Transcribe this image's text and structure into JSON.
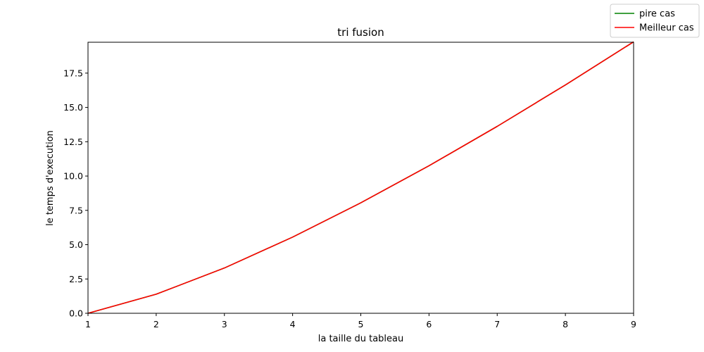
{
  "chart_data": {
    "type": "line",
    "title": "tri fusion",
    "xlabel": "la taille du tableau",
    "ylabel": "le temps d'execution",
    "x": [
      1,
      2,
      3,
      4,
      5,
      6,
      7,
      8,
      9
    ],
    "xlim": [
      1,
      9
    ],
    "ylim": [
      0,
      19.75
    ],
    "xticks": [
      1,
      2,
      3,
      4,
      5,
      6,
      7,
      8,
      9
    ],
    "yticks": [
      0.0,
      2.5,
      5.0,
      7.5,
      10.0,
      12.5,
      15.0,
      17.5
    ],
    "ytick_labels": [
      "0.0",
      "2.5",
      "5.0",
      "7.5",
      "10.0",
      "12.5",
      "15.0",
      "17.5"
    ],
    "grid": false,
    "legend_position": "top-right",
    "series": [
      {
        "name": " pire cas",
        "color": "#008000",
        "values": [
          0.0,
          1.39,
          3.3,
          5.55,
          8.05,
          10.75,
          13.62,
          16.64,
          19.78
        ]
      },
      {
        "name": "Meilleur cas",
        "color": "#ff0000",
        "values": [
          0.0,
          1.39,
          3.3,
          5.55,
          8.05,
          10.75,
          13.62,
          16.64,
          19.78
        ]
      }
    ]
  }
}
